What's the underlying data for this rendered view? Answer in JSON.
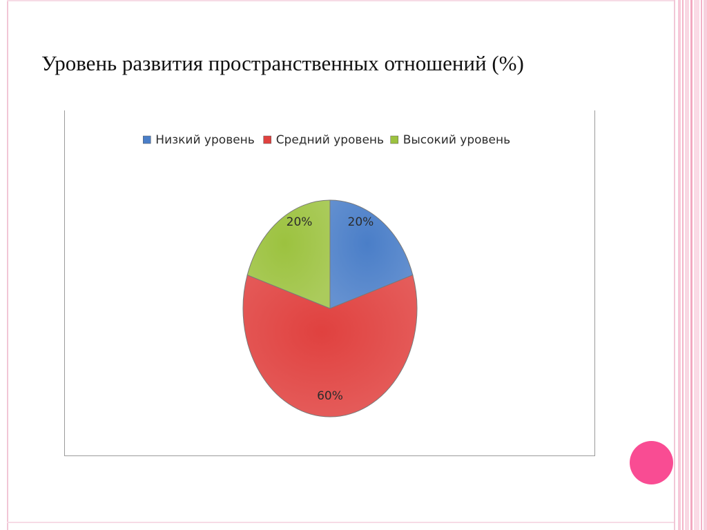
{
  "slide": {
    "title": "Уровень развития пространственных отношений (%)"
  },
  "colors": {
    "low": "#4a7ec8",
    "medium": "#e0413f",
    "high": "#9cc23f",
    "page_dot": "#f94c93",
    "frame": "#f2c6d6"
  },
  "chart_data": {
    "type": "pie",
    "title": "",
    "categories": [
      "Низкий уровень",
      "Средний уровень",
      "Высокий уровень"
    ],
    "values": [
      20,
      60,
      20
    ],
    "data_labels": [
      "20%",
      "60%",
      "20%"
    ],
    "legend_position": "top",
    "start_angle_deg": 0,
    "direction": "clockwise"
  }
}
